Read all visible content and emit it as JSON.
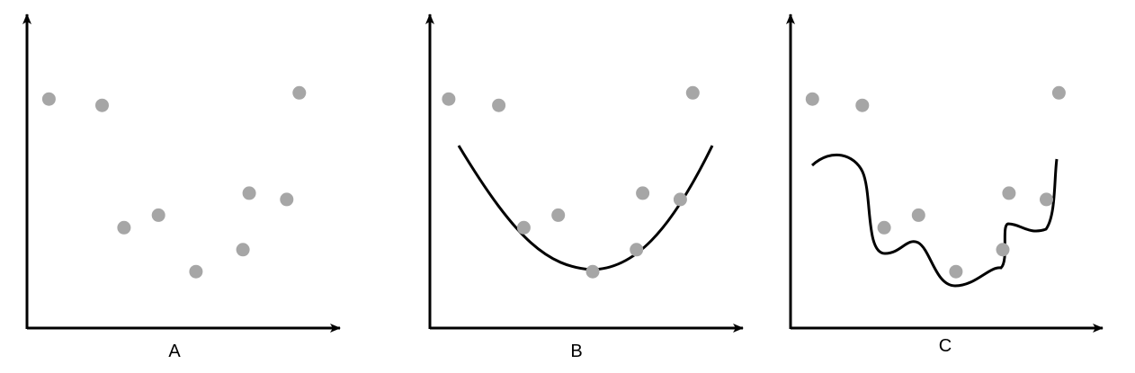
{
  "colors": {
    "axis": "#000000",
    "curve": "#000000",
    "point": "#a6a6a6",
    "background": "#ffffff"
  },
  "panels": [
    {
      "label": "A",
      "fit": "none",
      "points": [
        {
          "x": 0.07,
          "y": 0.73
        },
        {
          "x": 0.24,
          "y": 0.71
        },
        {
          "x": 0.31,
          "y": 0.32
        },
        {
          "x": 0.42,
          "y": 0.36
        },
        {
          "x": 0.54,
          "y": 0.18
        },
        {
          "x": 0.69,
          "y": 0.25
        },
        {
          "x": 0.71,
          "y": 0.43
        },
        {
          "x": 0.83,
          "y": 0.41
        },
        {
          "x": 0.87,
          "y": 0.75
        }
      ]
    },
    {
      "label": "B",
      "fit": "quadratic",
      "points": [
        {
          "x": 0.06,
          "y": 0.73
        },
        {
          "x": 0.22,
          "y": 0.71
        },
        {
          "x": 0.3,
          "y": 0.32
        },
        {
          "x": 0.41,
          "y": 0.36
        },
        {
          "x": 0.52,
          "y": 0.18
        },
        {
          "x": 0.66,
          "y": 0.25
        },
        {
          "x": 0.68,
          "y": 0.43
        },
        {
          "x": 0.8,
          "y": 0.41
        },
        {
          "x": 0.84,
          "y": 0.75
        }
      ]
    },
    {
      "label": "C",
      "fit": "interpolating",
      "points": [
        {
          "x": 0.07,
          "y": 0.73
        },
        {
          "x": 0.23,
          "y": 0.71
        },
        {
          "x": 0.3,
          "y": 0.32
        },
        {
          "x": 0.41,
          "y": 0.36
        },
        {
          "x": 0.53,
          "y": 0.18
        },
        {
          "x": 0.68,
          "y": 0.25
        },
        {
          "x": 0.7,
          "y": 0.43
        },
        {
          "x": 0.82,
          "y": 0.41
        },
        {
          "x": 0.86,
          "y": 0.75
        }
      ]
    }
  ]
}
